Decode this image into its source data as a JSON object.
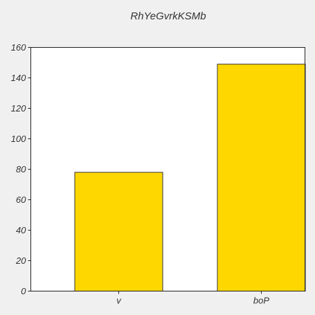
{
  "chart_data": {
    "type": "bar",
    "title": "RhYeGvrkKSMb",
    "xlabel": "",
    "ylabel": "",
    "categories": [
      "v",
      "boP"
    ],
    "values": [
      78,
      149
    ],
    "ylim": [
      0,
      160
    ],
    "yticks": [
      0,
      20,
      40,
      60,
      80,
      100,
      120,
      140,
      160
    ],
    "grid": false,
    "colors": {
      "bar_fill": "#ffd700",
      "bar_stroke": "#333333",
      "plot_background": "#ffffff",
      "page_background": "#f0f0f0",
      "axis": "#222222"
    }
  }
}
